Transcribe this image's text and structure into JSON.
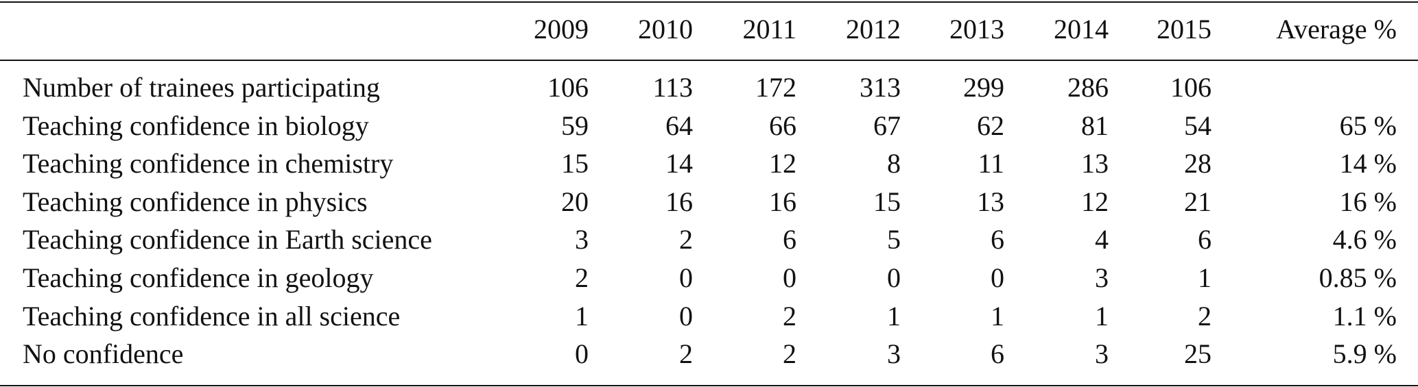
{
  "table": {
    "header": [
      "2009",
      "2010",
      "2011",
      "2012",
      "2013",
      "2014",
      "2015",
      "Average %"
    ],
    "rows": [
      [
        "Number of trainees participating",
        "106",
        "113",
        "172",
        "313",
        "299",
        "286",
        "106"
      ],
      [
        "Teaching confidence in biology",
        "59",
        "64",
        "66",
        "67",
        "62",
        "81",
        "54",
        "65 %"
      ],
      [
        "Teaching confidence in chemistry",
        "15",
        "14",
        "12",
        "8",
        "11",
        "13",
        "28",
        "14 %"
      ],
      [
        "Teaching confidence in physics",
        "20",
        "16",
        "16",
        "15",
        "13",
        "12",
        "21",
        "16 %"
      ],
      [
        "Teaching confidence in Earth science",
        "3",
        "2",
        "6",
        "5",
        "6",
        "4",
        "6",
        "4.6 %"
      ],
      [
        "Teaching confidence in geology",
        "2",
        "0",
        "0",
        "0",
        "0",
        "3",
        "1",
        "0.85 %"
      ],
      [
        "Teaching confidence in all science",
        "1",
        "0",
        "2",
        "1",
        "1",
        "1",
        "2",
        "1.1 %"
      ],
      [
        "No confidence",
        "0",
        "2",
        "2",
        "3",
        "6",
        "3",
        "25",
        "5.9 %"
      ]
    ]
  }
}
